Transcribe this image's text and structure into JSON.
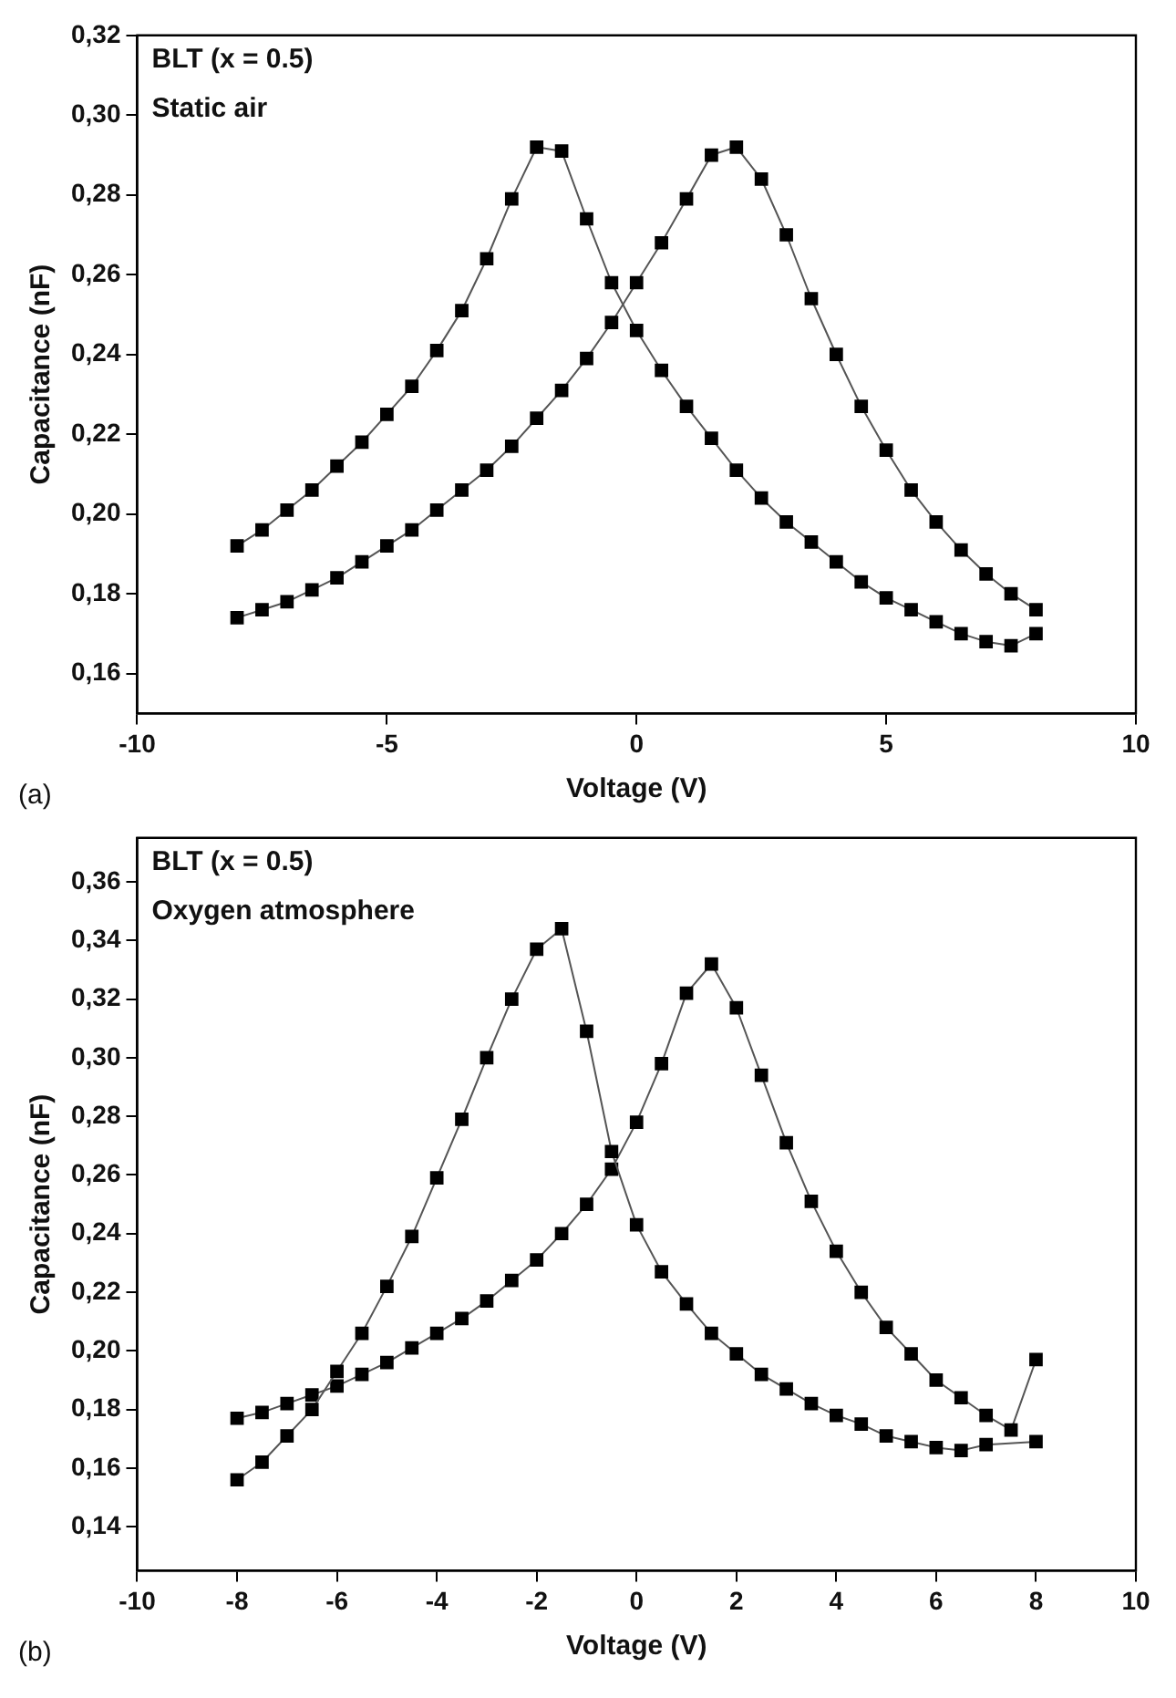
{
  "chart_data": [
    {
      "type": "line",
      "xlabel": "Voltage (V)",
      "ylabel": "Capacitance (nF)",
      "annotations": [
        "BLT (x = 0.5)",
        "Static air",
        "(a)"
      ],
      "x": [
        -8,
        -7.5,
        -7,
        -6.5,
        -6,
        -5.5,
        -5,
        -4.5,
        -4,
        -3.5,
        -3,
        -2.5,
        -2,
        -1.5,
        -1,
        -0.5,
        0,
        0.5,
        1,
        1.5,
        2,
        2.5,
        3,
        3.5,
        4,
        4.5,
        5,
        5.5,
        6,
        6.5,
        7,
        7.5,
        8
      ],
      "series": [
        {
          "color": "#000000",
          "values": [
            0.192,
            0.196,
            0.201,
            0.206,
            0.212,
            0.218,
            0.225,
            0.232,
            0.241,
            0.251,
            0.264,
            0.279,
            0.292,
            0.291,
            0.274,
            0.258,
            0.246,
            0.236,
            0.227,
            0.219,
            0.211,
            0.204,
            0.198,
            0.193,
            0.188,
            0.183,
            0.179,
            0.176,
            0.173,
            0.17,
            0.168,
            0.167,
            0.17
          ]
        },
        {
          "color": "#000000",
          "values": [
            0.174,
            0.176,
            0.178,
            0.181,
            0.184,
            0.188,
            0.192,
            0.196,
            0.201,
            0.206,
            0.211,
            0.217,
            0.224,
            0.231,
            0.239,
            0.248,
            0.258,
            0.268,
            0.279,
            0.29,
            0.292,
            0.284,
            0.27,
            0.254,
            0.24,
            0.227,
            0.216,
            0.206,
            0.198,
            0.191,
            0.185,
            0.18,
            0.176
          ]
        }
      ],
      "xlim": [
        -10,
        10
      ],
      "xticks": [
        -10,
        -5,
        0,
        5,
        10
      ],
      "ylim": [
        0.15,
        0.32
      ],
      "yticks": [
        {
          "value": 0.16,
          "label": "0,16"
        },
        {
          "value": 0.18,
          "label": "0,18"
        },
        {
          "value": 0.2,
          "label": "0,20"
        },
        {
          "value": 0.22,
          "label": "0,22"
        },
        {
          "value": 0.24,
          "label": "0,24"
        },
        {
          "value": 0.26,
          "label": "0,26"
        },
        {
          "value": 0.28,
          "label": "0,28"
        },
        {
          "value": 0.3,
          "label": "0,30"
        },
        {
          "value": 0.32,
          "label": "0,32"
        }
      ],
      "marker": "square",
      "line_style": "solid"
    },
    {
      "type": "line",
      "xlabel": "Voltage (V)",
      "ylabel": "Capacitance (nF)",
      "annotations": [
        "BLT (x = 0.5)",
        "Oxygen atmosphere",
        "(b)"
      ],
      "x": [
        -8,
        -7.5,
        -7,
        -6.5,
        -6,
        -5.5,
        -5,
        -4.5,
        -4,
        -3.5,
        -3,
        -2.5,
        -2,
        -1.5,
        -1,
        -0.5,
        0,
        0.5,
        1,
        1.5,
        2,
        2.5,
        3,
        3.5,
        4,
        4.5,
        5,
        5.5,
        6,
        6.5,
        7,
        7.5,
        8
      ],
      "series": [
        {
          "color": "#000000",
          "values": [
            0.156,
            0.162,
            0.171,
            0.18,
            0.193,
            0.206,
            0.222,
            0.239,
            0.259,
            0.279,
            0.3,
            0.32,
            0.337,
            0.344,
            0.309,
            0.268,
            0.243,
            0.227,
            0.216,
            0.206,
            0.199,
            0.192,
            0.187,
            0.182,
            0.178,
            0.175,
            0.171,
            0.169,
            0.167,
            0.166,
            0.168,
            null,
            0.169
          ]
        },
        {
          "color": "#000000",
          "values": [
            0.177,
            0.179,
            0.182,
            0.185,
            0.188,
            0.192,
            0.196,
            0.201,
            0.206,
            0.211,
            0.217,
            0.224,
            0.231,
            0.24,
            0.25,
            0.262,
            0.278,
            0.298,
            0.322,
            0.332,
            0.317,
            0.294,
            0.271,
            0.251,
            0.234,
            0.22,
            0.208,
            0.199,
            0.19,
            0.184,
            0.178,
            0.173,
            0.197
          ]
        }
      ],
      "xlim": [
        -10,
        10
      ],
      "xticks": [
        -10,
        -8,
        -6,
        -4,
        -2,
        0,
        2,
        4,
        6,
        8,
        10
      ],
      "ylim": [
        0.125,
        0.375
      ],
      "yticks": [
        {
          "value": 0.14,
          "label": "0,14"
        },
        {
          "value": 0.16,
          "label": "0,16"
        },
        {
          "value": 0.18,
          "label": "0,18"
        },
        {
          "value": 0.2,
          "label": "0,20"
        },
        {
          "value": 0.22,
          "label": "0,22"
        },
        {
          "value": 0.24,
          "label": "0,24"
        },
        {
          "value": 0.26,
          "label": "0,26"
        },
        {
          "value": 0.28,
          "label": "0,28"
        },
        {
          "value": 0.3,
          "label": "0,30"
        },
        {
          "value": 0.32,
          "label": "0,32"
        },
        {
          "value": 0.34,
          "label": "0,34"
        },
        {
          "value": 0.36,
          "label": "0,36"
        }
      ],
      "marker": "square",
      "line_style": "solid"
    }
  ]
}
